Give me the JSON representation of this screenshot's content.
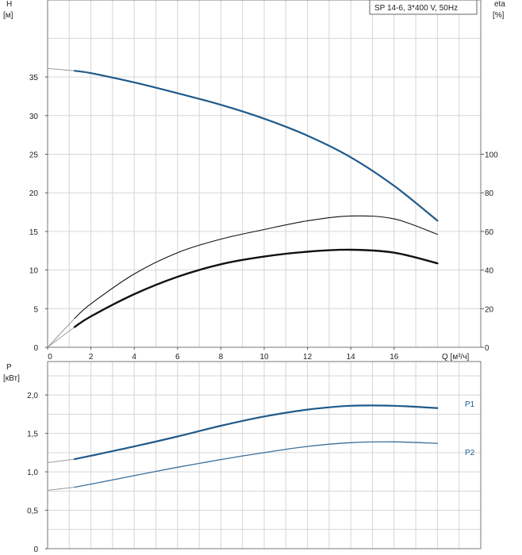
{
  "chart_data": [
    {
      "type": "line",
      "title": "SP 14-6, 3*400 V, 50Hz",
      "ylabel": "H",
      "yunit": "[м]",
      "ylabel_right": "eta",
      "yunit_right": "[%]",
      "xlabel": "Q [м³/ч]",
      "xlim": [
        0,
        18
      ],
      "ylim": [
        0,
        40
      ],
      "ylim_right": [
        0,
        160
      ],
      "x_ticks": [
        "0",
        "2",
        "4",
        "6",
        "8",
        "10",
        "12",
        "14",
        "16"
      ],
      "y_ticks": [
        "0",
        "5",
        "10",
        "15",
        "20",
        "25",
        "30",
        "35"
      ],
      "y_right_ticks": [
        "0",
        "20",
        "40",
        "60",
        "80",
        "100"
      ],
      "grid": true,
      "colors": {
        "head": "#1f5a8a",
        "efficiency": "#111111"
      },
      "series": [
        {
          "axis": "left",
          "x": [
            0,
            1.25,
            2,
            4,
            6,
            8,
            10,
            12,
            14,
            16,
            18.0
          ],
          "y": [
            36.1,
            35.8,
            35.5,
            34.3,
            32.9,
            31.4,
            29.6,
            27.4,
            24.6,
            20.9,
            16.4
          ]
        },
        {
          "axis": "right",
          "x": [
            0,
            1.25,
            2,
            4,
            6,
            8,
            10,
            12,
            14,
            16,
            18.0
          ],
          "y": [
            0,
            15,
            22.5,
            38,
            49,
            56,
            61,
            65.5,
            68,
            66.5,
            58.5
          ]
        },
        {
          "axis": "right",
          "x": [
            0,
            1.25,
            2,
            4,
            6,
            8,
            10,
            12,
            14,
            16,
            18.0
          ],
          "y": [
            0,
            10.5,
            16,
            27.5,
            36.5,
            43,
            47,
            49.5,
            50.5,
            49,
            43.5
          ]
        }
      ]
    },
    {
      "type": "line",
      "ylabel": "P",
      "yunit": "[кВт]",
      "xlim": [
        0,
        18
      ],
      "ylim": [
        0,
        2.5
      ],
      "y_ticks": [
        "0",
        "0,5",
        "1,0",
        "1,5",
        "2,0"
      ],
      "grid": true,
      "colors": {
        "P1": "#1f5a8a",
        "P2": "#3a6f9a"
      },
      "series": [
        {
          "name": "P1",
          "x": [
            0,
            1.25,
            2,
            4,
            6,
            8,
            10,
            12,
            14,
            16,
            18.0
          ],
          "y": [
            1.12,
            1.165,
            1.21,
            1.33,
            1.46,
            1.6,
            1.72,
            1.81,
            1.86,
            1.86,
            1.83
          ]
        },
        {
          "name": "P2",
          "x": [
            0,
            1.25,
            2,
            4,
            6,
            8,
            10,
            12,
            14,
            16,
            18.0
          ],
          "y": [
            0.76,
            0.8,
            0.84,
            0.95,
            1.06,
            1.16,
            1.25,
            1.33,
            1.38,
            1.39,
            1.37
          ]
        }
      ]
    }
  ]
}
